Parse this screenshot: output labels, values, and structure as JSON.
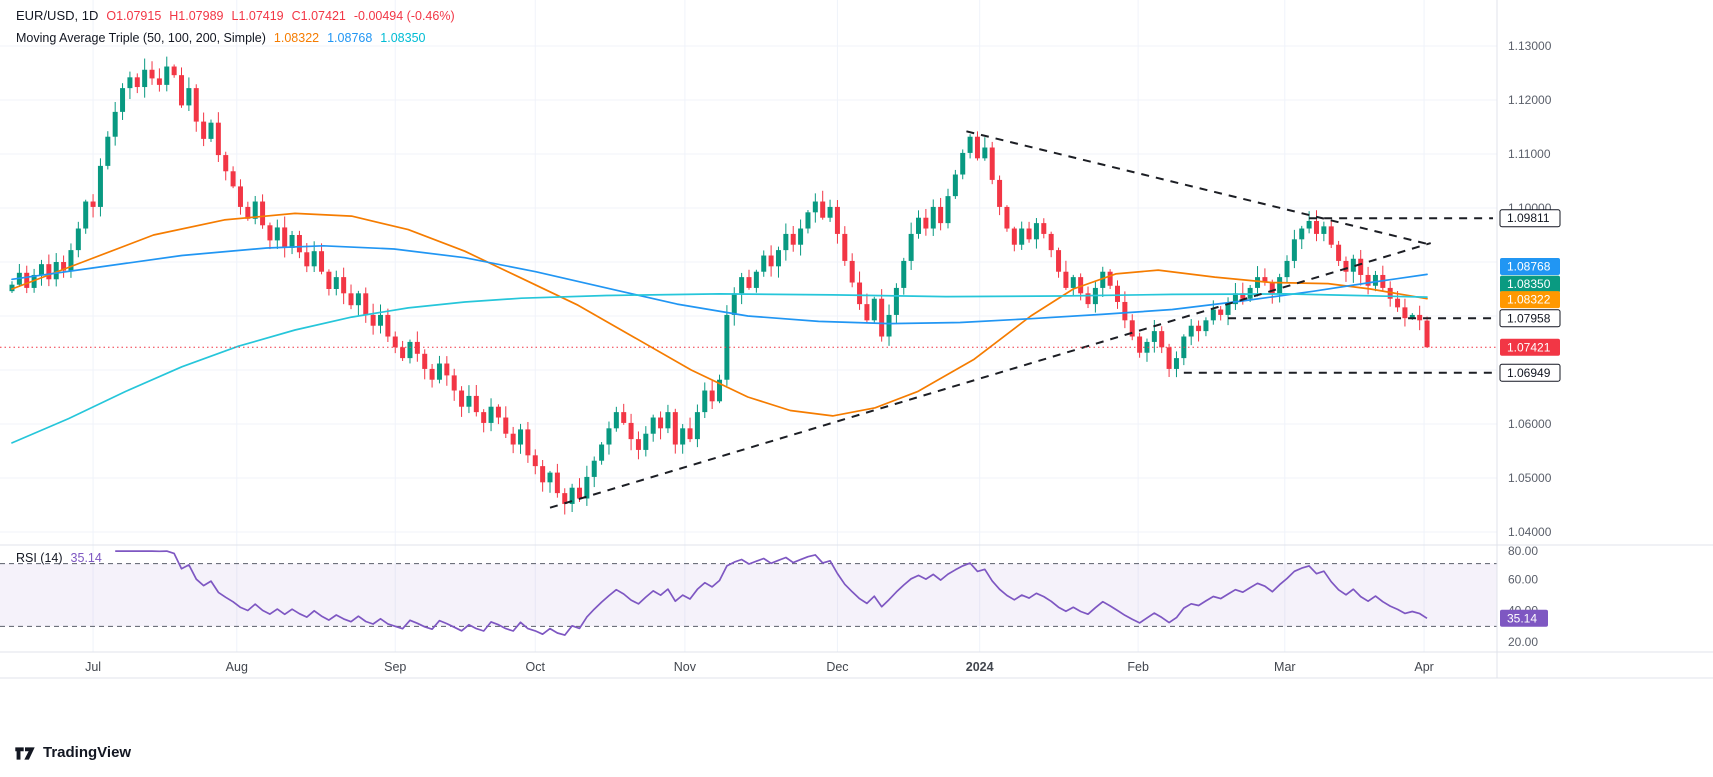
{
  "header": {
    "symbol": "EUR/USD, 1D",
    "ohlc_tokens": [
      "O1.07915",
      "H1.07989",
      "L1.07419",
      "C1.07421"
    ],
    "change": "-0.00494 (-0.46%)",
    "change_color": "#f23645",
    "ma_label": "Moving Average Triple (50, 100, 200, Simple)",
    "ma_values": [
      {
        "value": "1.08322",
        "color": "#f57c00"
      },
      {
        "value": "1.08768",
        "color": "#2196f3"
      },
      {
        "value": "1.08350",
        "color": "#00bcd4"
      }
    ]
  },
  "rsi": {
    "label": "RSI (14)",
    "value": "35.14",
    "color": "#7e57c2",
    "levels": [
      "80.00",
      "60.00",
      "40.00",
      "20.00"
    ],
    "upper_band": 70,
    "lower_band": 30
  },
  "footer": {
    "brand": "TradingView"
  },
  "time_axis": {
    "labels": [
      {
        "label": "Jul",
        "i": 11,
        "bold": false
      },
      {
        "label": "Aug",
        "i": 30.5,
        "bold": false
      },
      {
        "label": "Sep",
        "i": 52,
        "bold": false
      },
      {
        "label": "Oct",
        "i": 71,
        "bold": false
      },
      {
        "label": "Nov",
        "i": 91.3,
        "bold": false
      },
      {
        "label": "Dec",
        "i": 112,
        "bold": false
      },
      {
        "label": "2024",
        "i": 131.3,
        "bold": true
      },
      {
        "label": "Feb",
        "i": 152.8,
        "bold": false
      },
      {
        "label": "Mar",
        "i": 172.7,
        "bold": false
      },
      {
        "label": "Apr",
        "i": 191.6,
        "bold": false
      }
    ]
  },
  "price_axis": {
    "labels": [
      {
        "text": "1.13000",
        "price": 1.13
      },
      {
        "text": "1.12000",
        "price": 1.12
      },
      {
        "text": "1.11000",
        "price": 1.11
      },
      {
        "text": "1.10000",
        "price": 1.1
      },
      {
        "text": "1.06000",
        "price": 1.06
      },
      {
        "text": "1.05000",
        "price": 1.05
      },
      {
        "text": "1.04000",
        "price": 1.04
      }
    ],
    "badges": [
      {
        "text": "1.09811",
        "price": 1.09811,
        "type": "outline",
        "bg": "#ffffff"
      },
      {
        "text": "1.08768",
        "price": 1.08768,
        "type": "fill",
        "bg": "#2196f3"
      },
      {
        "text": "1.08350",
        "price": 1.0835,
        "type": "fill",
        "bg": "#0a9a81"
      },
      {
        "text": "1.08322",
        "price": 1.08322,
        "type": "fill",
        "bg": "#ff9800"
      },
      {
        "text": "1.07958",
        "price": 1.07958,
        "type": "outline",
        "bg": "#ffffff"
      },
      {
        "text": "1.07421",
        "price": 1.07421,
        "type": "fill",
        "bg": "#f23645"
      },
      {
        "text": "1.06949",
        "price": 1.06949,
        "type": "outline",
        "bg": "#ffffff"
      }
    ]
  },
  "chart_data": {
    "type": "candlestick",
    "title": "EUR/USD daily with Moving Average Triple (50,100,200, Simple), RSI(14)",
    "interval": "1D",
    "ylim": [
      1.04,
      1.13
    ],
    "y_ticks": [
      1.04,
      1.05,
      1.06,
      1.07,
      1.08,
      1.09,
      1.1,
      1.11,
      1.12,
      1.13
    ],
    "x_categories": [
      "Jul",
      "Aug",
      "Sep",
      "Oct",
      "Nov",
      "Dec",
      "2024",
      "Feb",
      "Mar",
      "Apr"
    ],
    "up_color": "#089981",
    "down_color": "#f23645",
    "closes": [
      1.0858,
      1.088,
      1.0852,
      1.0876,
      1.0896,
      1.0868,
      1.09,
      1.0884,
      1.0922,
      1.0962,
      1.1012,
      1.1002,
      1.1078,
      1.1132,
      1.1178,
      1.1222,
      1.1242,
      1.1224,
      1.1256,
      1.124,
      1.1228,
      1.1262,
      1.1246,
      1.119,
      1.1222,
      1.116,
      1.1128,
      1.1158,
      1.1098,
      1.1068,
      1.104,
      1.1002,
      1.098,
      1.1012,
      1.0968,
      1.094,
      1.0964,
      1.0926,
      1.095,
      1.0918,
      1.0892,
      1.092,
      1.0882,
      1.085,
      1.0872,
      1.0842,
      1.082,
      1.0842,
      1.0802,
      1.0782,
      1.0802,
      1.0762,
      1.0742,
      1.0722,
      1.0752,
      1.073,
      1.0702,
      1.0682,
      1.0712,
      1.069,
      1.0662,
      1.0632,
      1.0652,
      1.0622,
      1.0602,
      1.0632,
      1.0612,
      1.0582,
      1.0562,
      1.059,
      1.0542,
      1.0522,
      1.0492,
      1.051,
      1.0472,
      1.0452,
      1.0482,
      1.0462,
      1.0502,
      1.0532,
      1.0562,
      1.0592,
      1.0622,
      1.0602,
      1.0572,
      1.0552,
      1.0582,
      1.0612,
      1.0592,
      1.0622,
      1.0562,
      1.0592,
      1.0572,
      1.0622,
      1.0662,
      1.0642,
      1.0682,
      1.0802,
      1.0842,
      1.0872,
      1.0852,
      1.0882,
      1.0912,
      1.0892,
      1.0922,
      1.0952,
      1.0932,
      1.0962,
      1.0992,
      1.1012,
      1.0982,
      1.1002,
      1.0952,
      1.0902,
      1.0862,
      1.0822,
      1.0792,
      1.0832,
      1.0762,
      1.0802,
      1.0852,
      1.0902,
      1.0952,
      1.0982,
      1.0962,
      1.1002,
      1.0972,
      1.1022,
      1.1062,
      1.1102,
      1.1132,
      1.1092,
      1.1112,
      1.1052,
      1.1002,
      1.0962,
      1.0932,
      1.0962,
      1.0942,
      1.0972,
      1.0952,
      1.0922,
      1.0882,
      1.0852,
      1.0872,
      1.0842,
      1.0822,
      1.0852,
      1.0882,
      1.0856,
      1.0826,
      1.0792,
      1.0762,
      1.0732,
      1.0752,
      1.0772,
      1.0742,
      1.0702,
      1.0722,
      1.0762,
      1.0782,
      1.0772,
      1.0792,
      1.0812,
      1.0802,
      1.0822,
      1.0842,
      1.0832,
      1.0852,
      1.0872,
      1.0862,
      1.0842,
      1.0872,
      1.0902,
      1.0942,
      1.0962,
      1.0976,
      1.0952,
      1.0966,
      1.0932,
      1.0902,
      1.0882,
      1.0906,
      1.0876,
      1.0856,
      1.0876,
      1.0852,
      1.0832,
      1.0816,
      1.0796,
      1.0802,
      1.0792,
      1.07421
    ],
    "last_ohlc": {
      "o": 1.07915,
      "h": 1.07989,
      "l": 1.07419,
      "c": 1.07421
    },
    "current_price": 1.07421,
    "moving_averages": [
      {
        "name": "sma-50",
        "color": "#f57c00",
        "points": [
          [
            0,
            1.085
          ],
          [
            0.05,
            1.09
          ],
          [
            0.1,
            1.095
          ],
          [
            0.15,
            1.0978
          ],
          [
            0.2,
            1.099
          ],
          [
            0.24,
            1.0985
          ],
          [
            0.28,
            1.096
          ],
          [
            0.32,
            1.092
          ],
          [
            0.36,
            1.087
          ],
          [
            0.4,
            1.082
          ],
          [
            0.44,
            1.076
          ],
          [
            0.48,
            1.07
          ],
          [
            0.52,
            1.065
          ],
          [
            0.55,
            1.0625
          ],
          [
            0.58,
            1.0615
          ],
          [
            0.61,
            1.063
          ],
          [
            0.64,
            1.066
          ],
          [
            0.68,
            1.072
          ],
          [
            0.72,
            1.08
          ],
          [
            0.75,
            1.085
          ],
          [
            0.78,
            1.0878
          ],
          [
            0.81,
            1.0885
          ],
          [
            0.85,
            1.0872
          ],
          [
            0.89,
            1.0862
          ],
          [
            0.93,
            1.086
          ],
          [
            0.96,
            1.085
          ],
          [
            1,
            1.0832
          ]
        ]
      },
      {
        "name": "sma-100",
        "color": "#2196f3",
        "points": [
          [
            0,
            1.0868
          ],
          [
            0.06,
            1.089
          ],
          [
            0.12,
            1.0912
          ],
          [
            0.18,
            1.0926
          ],
          [
            0.22,
            1.093
          ],
          [
            0.27,
            1.0924
          ],
          [
            0.32,
            1.0908
          ],
          [
            0.37,
            1.0882
          ],
          [
            0.42,
            1.0852
          ],
          [
            0.47,
            1.0822
          ],
          [
            0.52,
            1.08
          ],
          [
            0.57,
            1.079
          ],
          [
            0.62,
            1.0786
          ],
          [
            0.67,
            1.0788
          ],
          [
            0.72,
            1.0795
          ],
          [
            0.77,
            1.0803
          ],
          [
            0.82,
            1.0812
          ],
          [
            0.87,
            1.0828
          ],
          [
            0.92,
            1.0846
          ],
          [
            0.96,
            1.0862
          ],
          [
            1,
            1.0877
          ]
        ]
      },
      {
        "name": "sma-200",
        "color": "#26c6da",
        "points": [
          [
            0,
            1.0565
          ],
          [
            0.04,
            1.061
          ],
          [
            0.08,
            1.066
          ],
          [
            0.12,
            1.0706
          ],
          [
            0.16,
            1.0744
          ],
          [
            0.2,
            1.0774
          ],
          [
            0.24,
            1.0798
          ],
          [
            0.28,
            1.0815
          ],
          [
            0.32,
            1.0826
          ],
          [
            0.36,
            1.0833
          ],
          [
            0.42,
            1.0838
          ],
          [
            0.5,
            1.0841
          ],
          [
            0.58,
            1.0839
          ],
          [
            0.66,
            1.0836
          ],
          [
            0.74,
            1.0837
          ],
          [
            0.82,
            1.084
          ],
          [
            0.9,
            1.0841
          ],
          [
            0.95,
            1.0838
          ],
          [
            1,
            1.0835
          ]
        ]
      }
    ],
    "trend_lines": [
      {
        "name": "descending",
        "from": [
          129.5,
          1.1142
        ],
        "to": [
          192.5,
          1.0932
        ]
      },
      {
        "name": "ascending",
        "from": [
          73,
          1.0445
        ],
        "to": [
          192.5,
          1.0935
        ]
      }
    ],
    "h_levels": [
      {
        "price": 1.09811,
        "from_i": 176
      },
      {
        "price": 1.07958,
        "from_i": 165
      },
      {
        "price": 1.06949,
        "from_i": 159
      }
    ],
    "rsi_current": 35.14
  }
}
